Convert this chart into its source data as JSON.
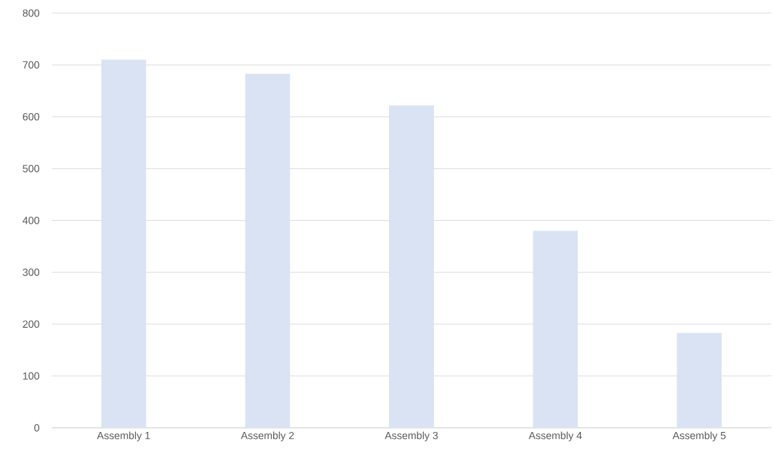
{
  "chart_data": {
    "type": "bar",
    "categories": [
      "Assembly 1",
      "Assembly 2",
      "Assembly 3",
      "Assembly 4",
      "Assembly 5"
    ],
    "values": [
      710,
      683,
      622,
      380,
      183
    ],
    "color": "#dae3f3",
    "ylim": [
      0,
      800
    ],
    "yticks": [
      0,
      100,
      200,
      300,
      400,
      500,
      600,
      700,
      800
    ],
    "grid": "y"
  }
}
